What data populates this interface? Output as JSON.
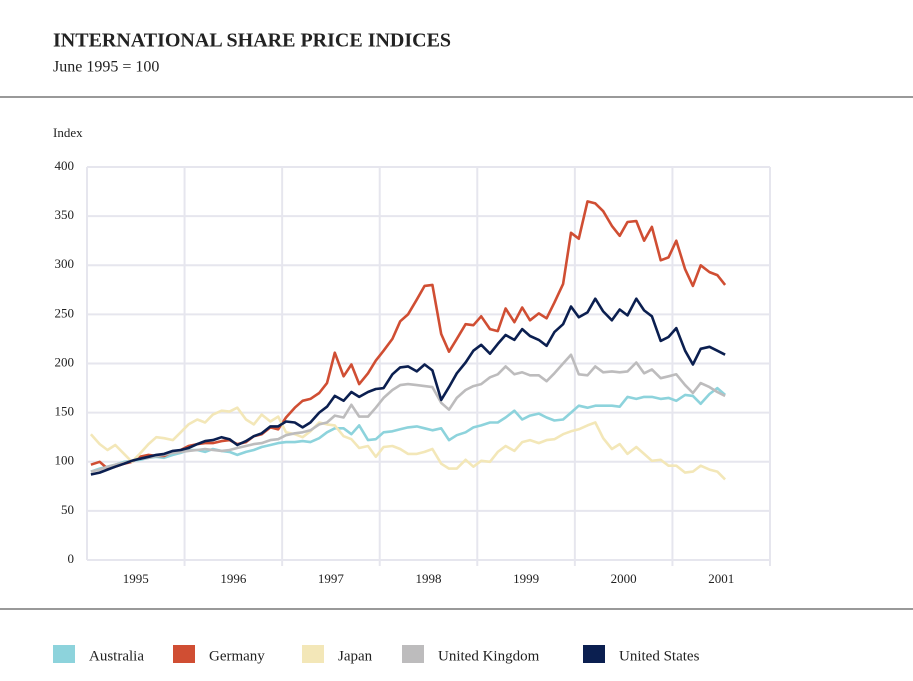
{
  "chart_data": {
    "type": "line",
    "title": "INTERNATIONAL SHARE PRICE INDICES",
    "subtitle": "June 1995 = 100",
    "ylabel": "Index",
    "xlim": [
      1994,
      2001
    ],
    "xticks": [
      {
        "value": 1994.5,
        "label": "1995"
      },
      {
        "value": 1995.5,
        "label": "1996"
      },
      {
        "value": 1996.5,
        "label": "1997"
      },
      {
        "value": 1997.5,
        "label": "1998"
      },
      {
        "value": 1998.5,
        "label": "1999"
      },
      {
        "value": 1999.5,
        "label": "2000"
      },
      {
        "value": 2000.5,
        "label": "2001"
      }
    ],
    "xgrid": [
      1995,
      1996,
      1997,
      1998,
      1999,
      2000,
      2001
    ],
    "ylim": [
      0,
      400
    ],
    "yticks": [
      0,
      50,
      100,
      150,
      200,
      250,
      300,
      350,
      400
    ],
    "grid": true,
    "legend": "bottom",
    "x": [
      1994.04,
      1994.13,
      1994.21,
      1994.29,
      1994.38,
      1994.46,
      1994.54,
      1994.63,
      1994.71,
      1994.79,
      1994.88,
      1994.96,
      1995.04,
      1995.13,
      1995.21,
      1995.29,
      1995.38,
      1995.46,
      1995.54,
      1995.63,
      1995.71,
      1995.79,
      1995.88,
      1995.96,
      1996.04,
      1996.13,
      1996.21,
      1996.29,
      1996.38,
      1996.46,
      1996.54,
      1996.63,
      1996.71,
      1996.79,
      1996.88,
      1996.96,
      1997.04,
      1997.13,
      1997.21,
      1997.29,
      1997.38,
      1997.46,
      1997.54,
      1997.63,
      1997.71,
      1997.79,
      1997.88,
      1997.96,
      1998.04,
      1998.13,
      1998.21,
      1998.29,
      1998.38,
      1998.46,
      1998.54,
      1998.63,
      1998.71,
      1998.79,
      1998.88,
      1998.96,
      1999.04,
      1999.13,
      1999.21,
      1999.29,
      1999.38,
      1999.46,
      1999.54,
      1999.63,
      1999.71,
      1999.79,
      1999.88,
      1999.96,
      2000.04,
      2000.13,
      2000.21,
      2000.29,
      2000.38,
      2000.46,
      2000.54
    ],
    "series": [
      {
        "name": "Australia",
        "color": "#8dd3dc",
        "values": [
          90,
          93,
          95,
          97,
          100,
          101,
          102,
          104,
          105,
          104,
          107,
          109,
          112,
          112,
          110,
          113,
          111,
          110,
          107,
          110,
          112,
          115,
          117,
          119,
          120,
          120,
          121,
          120,
          124,
          130,
          134,
          134,
          128,
          137,
          122,
          123,
          130,
          131,
          133,
          135,
          136,
          134,
          132,
          134,
          122,
          127,
          130,
          135,
          137,
          140,
          140,
          145,
          152,
          143,
          147,
          149,
          145,
          142,
          143,
          150,
          157,
          155,
          157,
          157,
          157,
          156,
          166,
          164,
          166,
          166,
          164,
          165,
          162,
          168,
          167,
          159,
          169,
          175,
          168
        ]
      },
      {
        "name": "Germany",
        "color": "#d04e33",
        "values": [
          97,
          100,
          93,
          95,
          98,
          100,
          105,
          107,
          106,
          106,
          110,
          112,
          116,
          118,
          119,
          119,
          121,
          122,
          118,
          120,
          126,
          128,
          135,
          133,
          145,
          155,
          162,
          164,
          170,
          180,
          211,
          187,
          199,
          179,
          190,
          203,
          213,
          225,
          243,
          250,
          265,
          279,
          280,
          230,
          212,
          225,
          240,
          239,
          248,
          235,
          233,
          256,
          242,
          257,
          244,
          251,
          246,
          262,
          281,
          333,
          327,
          365,
          363,
          355,
          340,
          330,
          344,
          345,
          325,
          339,
          305,
          308,
          325,
          296,
          279,
          300,
          293,
          290,
          280
        ]
      },
      {
        "name": "Japan",
        "color": "#f3e7b8",
        "values": [
          128,
          118,
          112,
          117,
          108,
          100,
          108,
          118,
          125,
          124,
          122,
          130,
          138,
          143,
          140,
          148,
          152,
          151,
          155,
          143,
          138,
          148,
          141,
          146,
          130,
          128,
          125,
          131,
          140,
          138,
          137,
          126,
          123,
          114,
          116,
          105,
          115,
          116,
          113,
          108,
          108,
          110,
          113,
          98,
          93,
          93,
          102,
          95,
          101,
          100,
          110,
          116,
          111,
          120,
          122,
          119,
          122,
          123,
          128,
          131,
          133,
          137,
          140,
          124,
          113,
          118,
          108,
          115,
          108,
          101,
          102,
          96,
          96,
          89,
          90,
          96,
          92,
          90,
          82
        ]
      },
      {
        "name": "United Kingdom",
        "color": "#bdbcbd",
        "values": [
          90,
          92,
          95,
          97,
          99,
          101,
          103,
          104,
          106,
          107,
          109,
          110,
          111,
          112,
          113,
          112,
          111,
          112,
          114,
          116,
          118,
          119,
          122,
          123,
          127,
          129,
          130,
          132,
          138,
          140,
          147,
          145,
          158,
          146,
          146,
          155,
          165,
          173,
          178,
          179,
          178,
          177,
          176,
          160,
          153,
          165,
          173,
          177,
          179,
          186,
          189,
          197,
          189,
          191,
          188,
          188,
          182,
          190,
          200,
          209,
          189,
          188,
          197,
          191,
          192,
          191,
          192,
          201,
          190,
          194,
          185,
          187,
          189,
          178,
          170,
          180,
          176,
          171,
          167
        ]
      },
      {
        "name": "United States",
        "color": "#0b1f50",
        "values": [
          87,
          89,
          92,
          95,
          98,
          101,
          103,
          105,
          107,
          108,
          111,
          112,
          114,
          118,
          121,
          122,
          125,
          123,
          117,
          121,
          126,
          129,
          136,
          136,
          141,
          140,
          135,
          140,
          150,
          156,
          167,
          162,
          171,
          166,
          171,
          174,
          175,
          189,
          196,
          197,
          192,
          199,
          193,
          163,
          176,
          190,
          201,
          213,
          219,
          210,
          220,
          229,
          224,
          235,
          228,
          224,
          218,
          232,
          240,
          258,
          247,
          252,
          266,
          253,
          244,
          255,
          249,
          266,
          254,
          248,
          223,
          227,
          236,
          213,
          199,
          215,
          217,
          213,
          209
        ]
      }
    ]
  }
}
